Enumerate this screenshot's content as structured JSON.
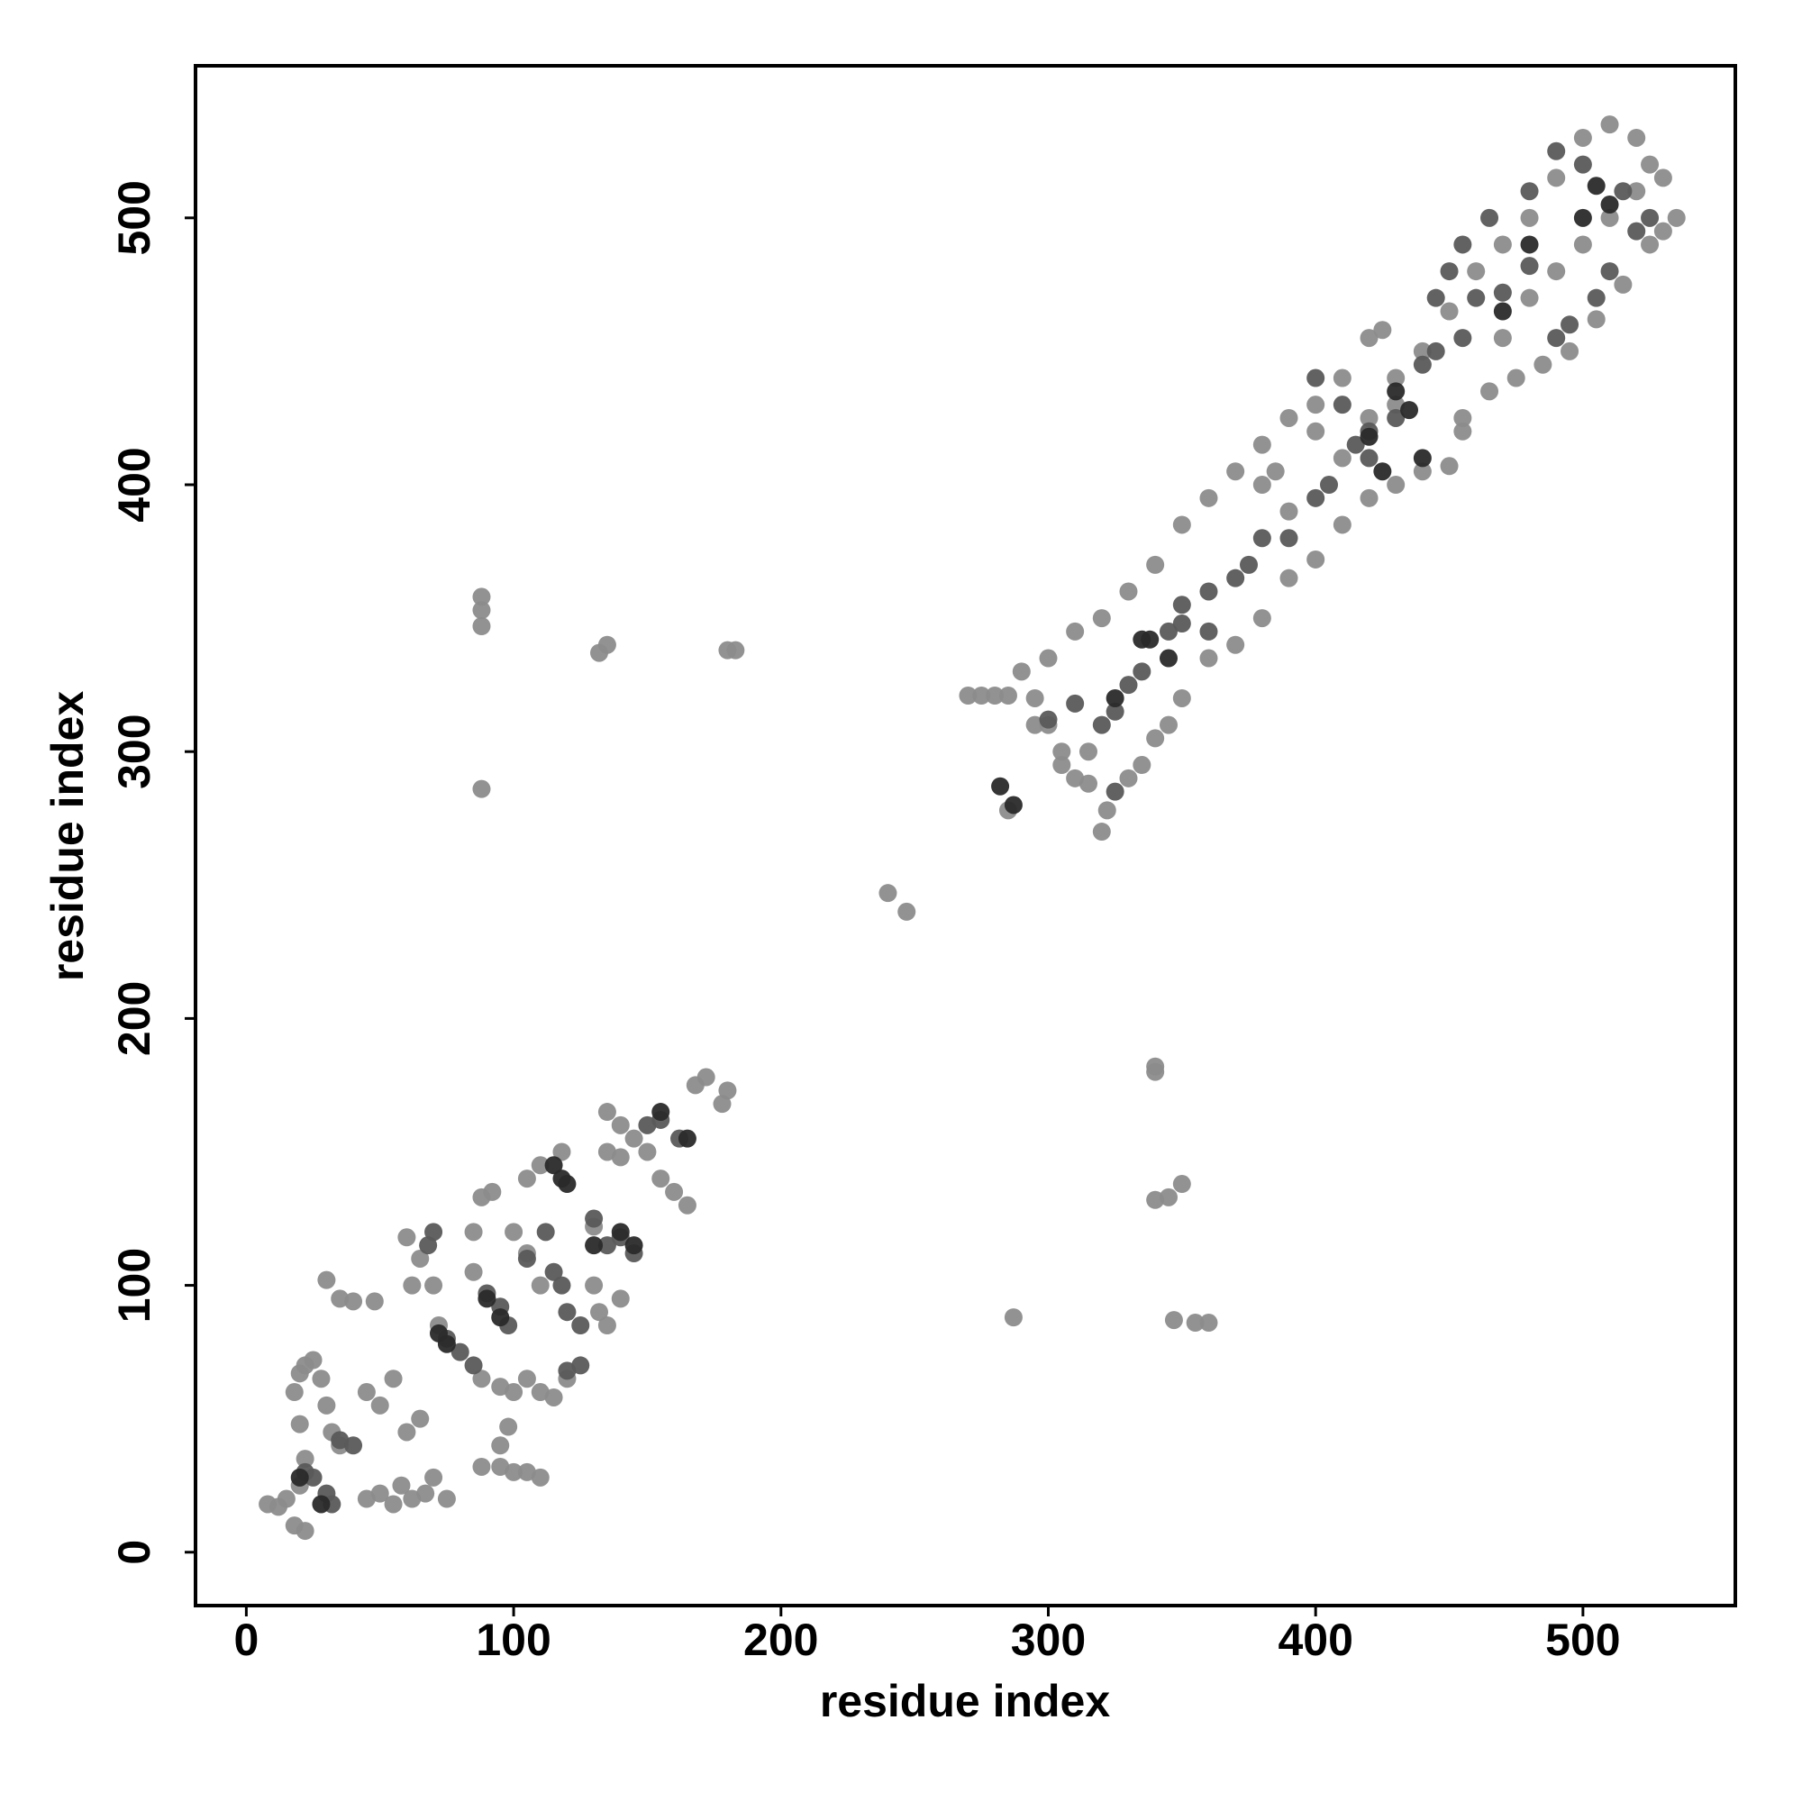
{
  "chart_data": {
    "type": "scatter",
    "xlabel": "residue index",
    "ylabel": "residue index",
    "xlim": [
      -19,
      557
    ],
    "ylim": [
      -20,
      557
    ],
    "xticks": [
      0,
      100,
      200,
      300,
      400,
      500
    ],
    "yticks": [
      0,
      100,
      200,
      300,
      400,
      500
    ],
    "grid": false,
    "series": [
      {
        "color": "#8c8c8c",
        "x": [
          8,
          12,
          15,
          18,
          22,
          20,
          22,
          20,
          18,
          20,
          22,
          25,
          28,
          30,
          32,
          35,
          30,
          35,
          40,
          48,
          45,
          50,
          55,
          60,
          65,
          58,
          62,
          67,
          70,
          75,
          45,
          50,
          55,
          62,
          65,
          60,
          70,
          72,
          85,
          88,
          92,
          85,
          88,
          95,
          100,
          105,
          110,
          115,
          120,
          88,
          95,
          100,
          105,
          110,
          95,
          98,
          100,
          105,
          110,
          105,
          110,
          118,
          130,
          132,
          135,
          140,
          130,
          135,
          140,
          145,
          150,
          155,
          160,
          165,
          168,
          172,
          178,
          180,
          135,
          140,
          290,
          295,
          300,
          305,
          310,
          315,
          300,
          310,
          320,
          330,
          340,
          350,
          360,
          370,
          380,
          390,
          400,
          410,
          420,
          425,
          320,
          322,
          330,
          335,
          340,
          345,
          350,
          360,
          370,
          380,
          390,
          400,
          410,
          420,
          430,
          440,
          450,
          455,
          455,
          380,
          385,
          390,
          400,
          430,
          440,
          450,
          460,
          470,
          480,
          490,
          500,
          510,
          520,
          530,
          535,
          530,
          525,
          515,
          505,
          495,
          485,
          475,
          465,
          470,
          480,
          490,
          500,
          510,
          520,
          525,
          410,
          420,
          430,
          295,
          305,
          315,
          270,
          275,
          280,
          285,
          285,
          88,
          88,
          88,
          88,
          132,
          135,
          180,
          183,
          240,
          247,
          287,
          340,
          340,
          340,
          345,
          347,
          355,
          360,
          350
        ],
        "values": [
          18,
          17,
          20,
          10,
          8,
          25,
          35,
          48,
          60,
          67,
          70,
          72,
          65,
          55,
          45,
          40,
          102,
          95,
          94,
          94,
          60,
          55,
          65,
          45,
          50,
          25,
          20,
          22,
          28,
          20,
          20,
          22,
          18,
          100,
          110,
          118,
          100,
          85,
          120,
          133,
          135,
          105,
          65,
          62,
          60,
          65,
          60,
          58,
          65,
          32,
          32,
          30,
          30,
          28,
          40,
          47,
          120,
          112,
          100,
          140,
          145,
          150,
          100,
          90,
          85,
          95,
          122,
          165,
          160,
          155,
          150,
          140,
          135,
          130,
          175,
          178,
          168,
          173,
          150,
          148,
          330,
          320,
          310,
          300,
          290,
          288,
          335,
          345,
          350,
          360,
          370,
          385,
          395,
          405,
          415,
          425,
          430,
          440,
          455,
          458,
          270,
          278,
          290,
          295,
          305,
          310,
          320,
          335,
          340,
          350,
          365,
          372,
          385,
          395,
          400,
          405,
          407,
          420,
          425,
          400,
          405,
          390,
          420,
          440,
          450,
          465,
          480,
          490,
          500,
          515,
          530,
          535,
          530,
          515,
          500,
          495,
          490,
          475,
          462,
          450,
          445,
          440,
          435,
          455,
          470,
          480,
          490,
          500,
          510,
          520,
          410,
          425,
          430,
          310,
          295,
          300,
          321,
          321,
          321,
          321,
          278,
          358,
          353,
          347,
          286,
          337,
          340,
          338,
          338,
          247,
          240,
          88,
          182,
          180,
          132,
          133,
          87,
          86,
          86,
          138
        ]
      },
      {
        "color": "#5a5a5a",
        "x": [
          22,
          25,
          30,
          32,
          35,
          40,
          70,
          68,
          75,
          80,
          85,
          90,
          95,
          98,
          105,
          112,
          115,
          118,
          120,
          125,
          130,
          135,
          140,
          145,
          150,
          155,
          162,
          120,
          125,
          330,
          335,
          345,
          350,
          360,
          370,
          375,
          390,
          400,
          405,
          415,
          420,
          430,
          440,
          445,
          455,
          460,
          470,
          480,
          490,
          495,
          505,
          510,
          520,
          525,
          515,
          500,
          490,
          480,
          465,
          455,
          450,
          445,
          400,
          410,
          420,
          380,
          360,
          350,
          325,
          320,
          310,
          300,
          325
        ],
        "values": [
          30,
          28,
          22,
          18,
          42,
          40,
          120,
          115,
          80,
          75,
          70,
          97,
          92,
          85,
          110,
          120,
          105,
          100,
          90,
          85,
          125,
          115,
          118,
          112,
          160,
          162,
          155,
          68,
          70,
          325,
          330,
          345,
          348,
          360,
          365,
          370,
          380,
          395,
          400,
          415,
          420,
          425,
          445,
          450,
          455,
          470,
          472,
          482,
          455,
          460,
          470,
          480,
          495,
          500,
          510,
          520,
          525,
          510,
          500,
          490,
          480,
          470,
          440,
          430,
          410,
          380,
          345,
          355,
          315,
          310,
          318,
          312,
          285
        ]
      },
      {
        "color": "#2a2a2a",
        "x": [
          20,
          28,
          75,
          72,
          90,
          95,
          115,
          118,
          120,
          140,
          145,
          155,
          165,
          335,
          338,
          345,
          325,
          430,
          435,
          420,
          425,
          440,
          505,
          510,
          500,
          470,
          480,
          282,
          287,
          130
        ],
        "values": [
          28,
          18,
          78,
          82,
          95,
          88,
          145,
          140,
          138,
          120,
          115,
          165,
          155,
          342,
          342,
          335,
          320,
          435,
          428,
          418,
          405,
          410,
          512,
          505,
          500,
          465,
          490,
          287,
          280,
          115
        ]
      }
    ]
  }
}
